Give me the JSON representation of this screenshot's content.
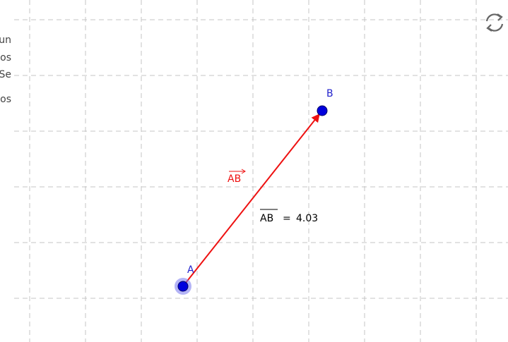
{
  "sidebar_fragments": [
    "un",
    "os",
    "Se",
    "os"
  ],
  "points": [
    {
      "label": "A"
    },
    {
      "label": "B"
    }
  ],
  "vector": {
    "label": "AB"
  },
  "segment": {
    "label": "AB",
    "sign": "=",
    "length": "4.03"
  }
}
